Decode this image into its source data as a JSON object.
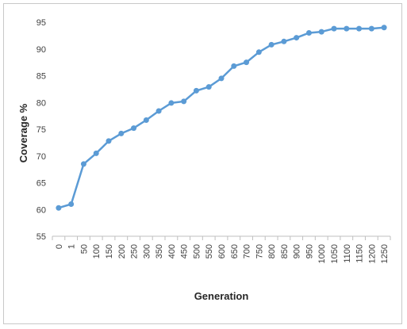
{
  "chart_data": {
    "type": "line",
    "title": "",
    "xlabel": "Generation",
    "ylabel": "Coverage %",
    "categories": [
      "0",
      "1",
      "50",
      "100",
      "150",
      "200",
      "250",
      "300",
      "350",
      "400",
      "450",
      "500",
      "550",
      "600",
      "650",
      "700",
      "750",
      "800",
      "850",
      "900",
      "950",
      "1000",
      "1050",
      "1100",
      "1150",
      "1200",
      "1250"
    ],
    "series": [
      {
        "values": [
          60.3,
          61.0,
          68.5,
          70.5,
          72.8,
          74.2,
          75.2,
          76.7,
          78.4,
          79.9,
          80.2,
          82.2,
          82.9,
          84.5,
          86.8,
          87.5,
          89.4,
          90.8,
          91.4,
          92.1,
          93.0,
          93.2,
          93.8,
          93.8,
          93.8,
          93.8,
          94.0
        ]
      }
    ],
    "ylim": [
      55,
      95
    ],
    "yticks": [
      55,
      60,
      65,
      70,
      75,
      80,
      85,
      90,
      95
    ],
    "grid": false,
    "legend": "none",
    "line_color": "#5b9bd5"
  }
}
